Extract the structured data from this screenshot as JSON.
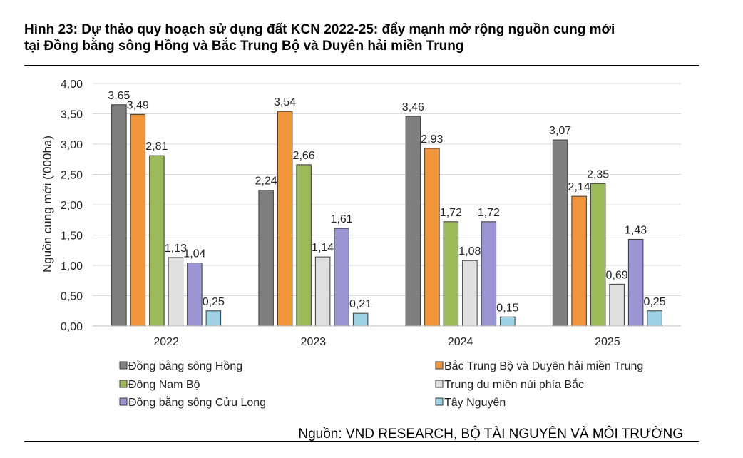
{
  "figure": {
    "title_line1": "Hình 23: Dự thảo quy hoạch sử dụng đất KCN 2022-25: đẩy mạnh mở rộng nguồn cung mới",
    "title_line2": "tại Đồng bằng sông Hồng và Bắc Trung Bộ và Duyên hải miền Trung",
    "source": "Nguồn: VND RESEARCH, BỘ TÀI NGUYÊN VÀ MÔI TRƯỜNG"
  },
  "chart_data": {
    "type": "bar",
    "title": "",
    "xlabel": "",
    "ylabel": "Nguồn cung mới ('000ha)",
    "ylim": [
      0,
      4
    ],
    "yticks": [
      "0,00",
      "0,50",
      "1,00",
      "1,50",
      "2,00",
      "2,50",
      "3,00",
      "3,50",
      "4,00"
    ],
    "grid": true,
    "legend_position": "bottom",
    "categories": [
      "2022",
      "2023",
      "2024",
      "2025"
    ],
    "series": [
      {
        "name": "Đồng bằng sông Hồng",
        "color": "#7f7f7f",
        "values": [
          3.65,
          2.24,
          3.46,
          3.07
        ],
        "labels": [
          "3,65",
          "2,24",
          "3,46",
          "3,07"
        ]
      },
      {
        "name": "Bắc Trung Bộ và Duyên hải miền Trung",
        "color": "#f0953a",
        "values": [
          3.49,
          3.54,
          2.93,
          2.14
        ],
        "labels": [
          "3,49",
          "3,54",
          "2,93",
          "2,14"
        ]
      },
      {
        "name": "Đông Nam Bộ",
        "color": "#9bbb59",
        "values": [
          2.81,
          2.66,
          1.72,
          2.35
        ],
        "labels": [
          "2,81",
          "2,66",
          "1,72",
          "2,35"
        ]
      },
      {
        "name": "Trung du miền núi phía Bắc",
        "color": "#e0e0e0",
        "values": [
          1.13,
          1.14,
          1.08,
          0.69
        ],
        "labels": [
          "1,13",
          "1,14",
          "1,08",
          "0,69"
        ]
      },
      {
        "name": "Đồng bằng sông Cửu Long",
        "color": "#9b95d4",
        "values": [
          1.04,
          1.61,
          1.72,
          1.43
        ],
        "labels": [
          "1,04",
          "1,61",
          "1,72",
          "1,43"
        ]
      },
      {
        "name": "Tây Nguyên",
        "color": "#9ed3e6",
        "values": [
          0.25,
          0.21,
          0.15,
          0.25
        ],
        "labels": [
          "0,25",
          "0,21",
          "0,15",
          "0,25"
        ]
      }
    ]
  }
}
